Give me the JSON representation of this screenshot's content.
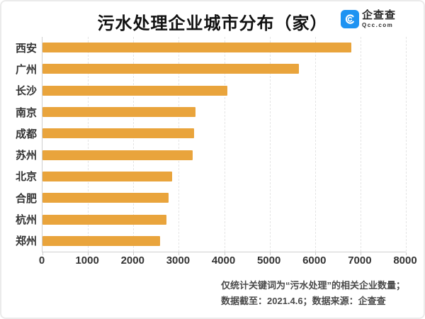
{
  "page": {
    "title": "污水处理企业城市分布（家）",
    "logo": {
      "name": "企查查",
      "domain": "Qcc.com"
    },
    "footer": {
      "line1": "仅统计关键词为“污水处理”的相关企业数量；",
      "line2": "数据截至：2021.4.6；数据来源：企查查"
    }
  },
  "colors": {
    "bar": "#E9A43C",
    "logo_blue": "#1E93F2",
    "axis": "#CFCFCF",
    "gridline": "#E4E4E4",
    "title_text": "#111111",
    "label_text": "#333333",
    "footer_text": "#4A4A4A"
  },
  "chart_data": {
    "type": "bar",
    "orientation": "horizontal",
    "title": "污水处理企业城市分布（家）",
    "categories": [
      "西安",
      "广州",
      "长沙",
      "南京",
      "成都",
      "苏州",
      "北京",
      "合肥",
      "杭州",
      "郑州"
    ],
    "values": [
      6800,
      5650,
      4070,
      3370,
      3340,
      3300,
      2850,
      2780,
      2730,
      2590
    ],
    "xlabel": "",
    "ylabel": "",
    "xlim": [
      0,
      8000
    ],
    "x_ticks": [
      0,
      1000,
      2000,
      3000,
      4000,
      5000,
      6000,
      7000,
      8000
    ],
    "grid": "vertical-dashed",
    "legend": "none",
    "bar_color": "#E9A43C"
  }
}
